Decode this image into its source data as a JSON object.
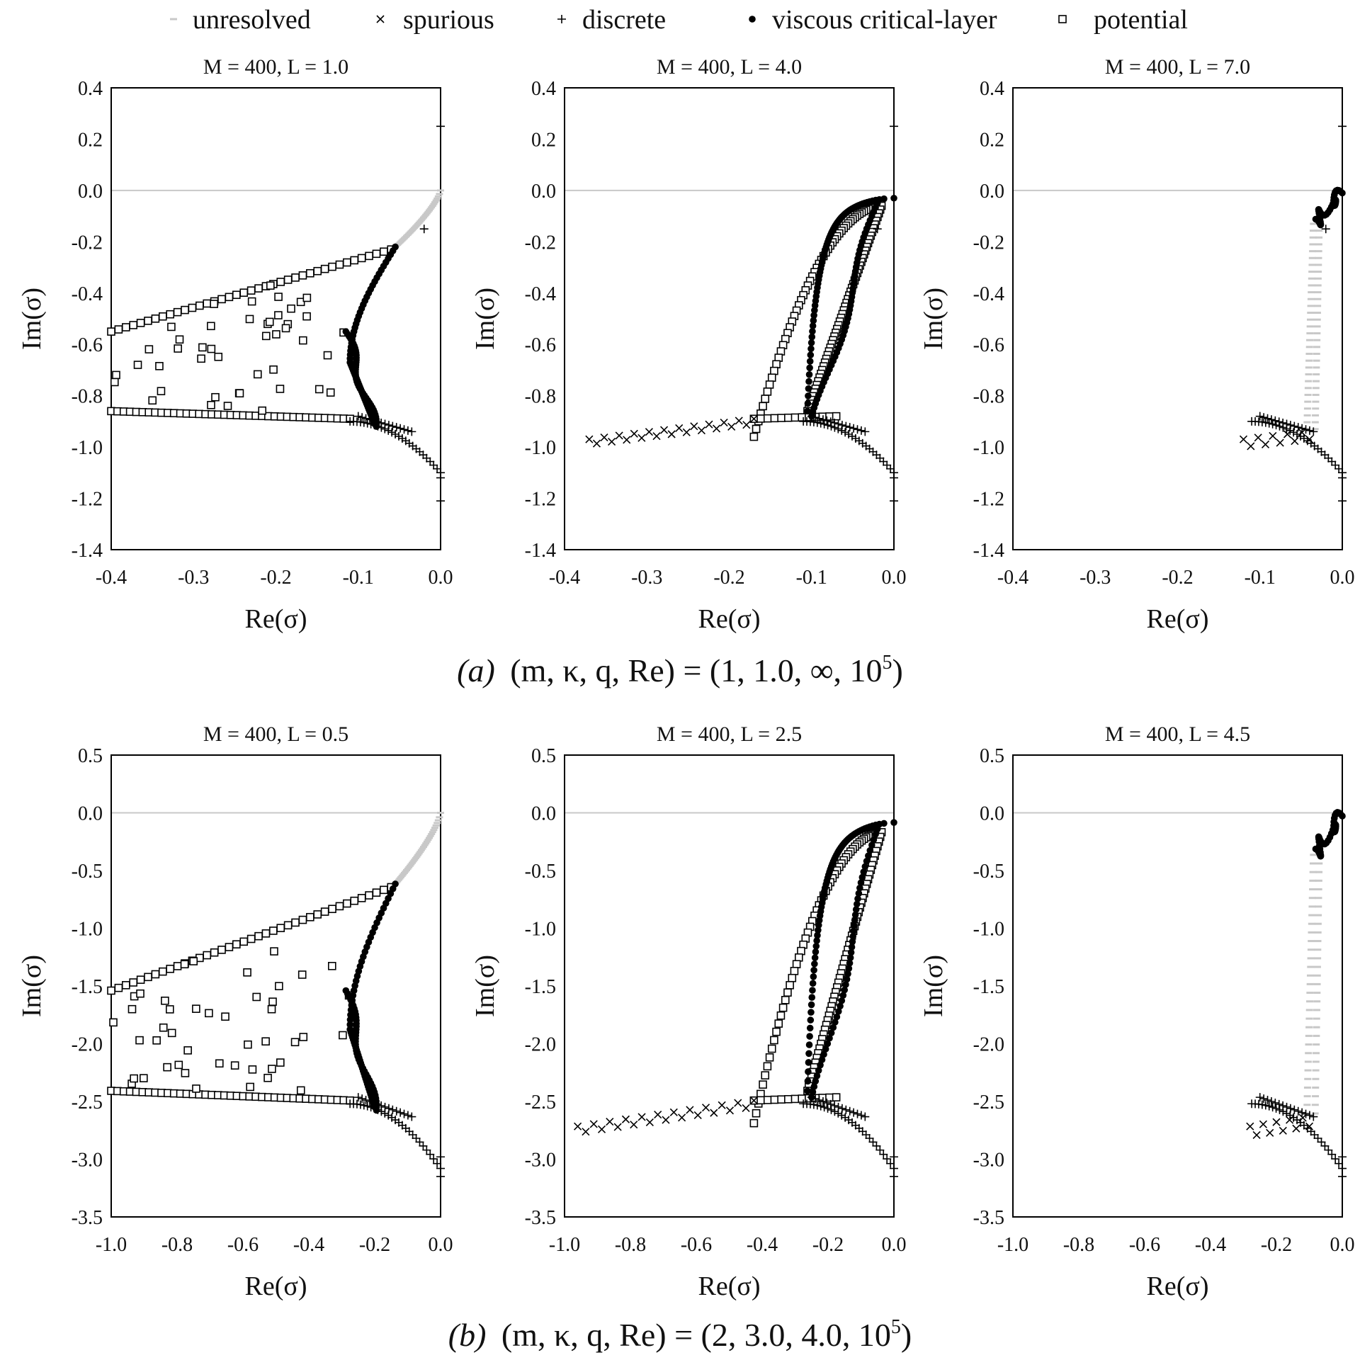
{
  "legend": [
    {
      "key": "unresolved",
      "label": "unresolved",
      "marker": "dash"
    },
    {
      "key": "spurious",
      "label": "spurious",
      "marker": "x"
    },
    {
      "key": "discrete",
      "label": "discrete",
      "marker": "plus"
    },
    {
      "key": "viscous",
      "label": "viscous critical-layer",
      "marker": "dot"
    },
    {
      "key": "potential",
      "label": "potential",
      "marker": "square"
    }
  ],
  "captions": {
    "a": {
      "prefix": "(a)",
      "params": "(m, κ, q, Re) = (1, 1.0, ∞, 10",
      "exp": "5",
      "close": ")"
    },
    "b": {
      "prefix": "(b)",
      "params": "(m, κ, q, Re) = (2, 3.0, 4.0, 10",
      "exp": "5",
      "close": ")"
    }
  },
  "colors": {
    "marker": "#000000",
    "unresolved": "#c8c8c8",
    "zeroline": "#c8c8c8"
  },
  "chart_data": [
    {
      "type": "scatter",
      "panel": "a1",
      "title": "M = 400, L = 1.0",
      "xlabel": "Re(σ)",
      "ylabel": "Im(σ)",
      "xlim": [
        -0.4,
        0.0
      ],
      "ylim": [
        -1.4,
        0.4
      ],
      "xticks": [
        "-0.4",
        "-0.3",
        "-0.2",
        "-0.1",
        "0.0"
      ],
      "xtick_values": [
        -0.4,
        -0.3,
        -0.2,
        -0.1,
        0.0
      ],
      "yticks": [
        "0.4",
        "0.2",
        "0.0",
        "-0.2",
        "-0.4",
        "-0.6",
        "-0.8",
        "-1.0",
        "-1.2",
        "-1.4"
      ],
      "ytick_values": [
        0.4,
        0.2,
        0.0,
        -0.2,
        -0.4,
        -0.6,
        -0.8,
        -1.0,
        -1.2,
        -1.4
      ],
      "variant": "resolved",
      "y_scale": 1.0,
      "x_left": -0.4,
      "discrete": [
        [
          0.0,
          0.25
        ],
        [
          -0.02,
          -0.15
        ],
        [
          0.0,
          -1.12
        ],
        [
          0.0,
          -1.21
        ]
      ]
    },
    {
      "type": "scatter",
      "panel": "a2",
      "title": "M = 400, L = 4.0",
      "xlabel": "Re(σ)",
      "ylabel": "Im(σ)",
      "xlim": [
        -0.4,
        0.0
      ],
      "ylim": [
        -1.4,
        0.4
      ],
      "xticks": [
        "-0.4",
        "-0.3",
        "-0.2",
        "-0.1",
        "0.0"
      ],
      "xtick_values": [
        -0.4,
        -0.3,
        -0.2,
        -0.1,
        0.0
      ],
      "yticks": [
        "0.4",
        "0.2",
        "0.0",
        "-0.2",
        "-0.4",
        "-0.6",
        "-0.8",
        "-1.0",
        "-1.2",
        "-1.4"
      ],
      "ytick_values": [
        0.4,
        0.2,
        0.0,
        -0.2,
        -0.4,
        -0.6,
        -0.8,
        -1.0,
        -1.2,
        -1.4
      ],
      "variant": "spurious",
      "y_scale": 1.0,
      "x_left": -0.37,
      "discrete": [
        [
          0.0,
          0.25
        ],
        [
          -0.02,
          -0.15
        ],
        [
          0.0,
          -1.12
        ],
        [
          0.0,
          -1.21
        ]
      ]
    },
    {
      "type": "scatter",
      "panel": "a3",
      "title": "M = 400, L = 7.0",
      "xlabel": "Re(σ)",
      "ylabel": "Im(σ)",
      "xlim": [
        -0.4,
        0.0
      ],
      "ylim": [
        -1.4,
        0.4
      ],
      "xticks": [
        "-0.4",
        "-0.3",
        "-0.2",
        "-0.1",
        "0.0"
      ],
      "xtick_values": [
        -0.4,
        -0.3,
        -0.2,
        -0.1,
        0.0
      ],
      "yticks": [
        "0.4",
        "0.2",
        "0.0",
        "-0.2",
        "-0.4",
        "-0.6",
        "-0.8",
        "-1.0",
        "-1.2",
        "-1.4"
      ],
      "ytick_values": [
        0.4,
        0.2,
        0.0,
        -0.2,
        -0.4,
        -0.6,
        -0.8,
        -1.0,
        -1.2,
        -1.4
      ],
      "variant": "collapsed",
      "y_scale": 1.0,
      "x_left": -0.12,
      "discrete": [
        [
          0.0,
          0.25
        ],
        [
          -0.02,
          -0.15
        ],
        [
          0.0,
          -1.12
        ],
        [
          0.0,
          -1.21
        ]
      ]
    },
    {
      "type": "scatter",
      "panel": "b1",
      "title": "M = 400, L = 0.5",
      "xlabel": "Re(σ)",
      "ylabel": "Im(σ)",
      "xlim": [
        -1.0,
        0.0
      ],
      "ylim": [
        -3.5,
        0.5
      ],
      "xticks": [
        "-1.0",
        "-0.8",
        "-0.6",
        "-0.4",
        "-0.2",
        "0.0"
      ],
      "xtick_values": [
        -1.0,
        -0.8,
        -0.6,
        -0.4,
        -0.2,
        0.0
      ],
      "yticks": [
        "0.5",
        "0.0",
        "-0.5",
        "-1.0",
        "-1.5",
        "-2.0",
        "-2.5",
        "-3.0",
        "-3.5"
      ],
      "ytick_values": [
        0.5,
        0.0,
        -0.5,
        -1.0,
        -1.5,
        -2.0,
        -2.5,
        -3.0,
        -3.5
      ],
      "variant": "resolved",
      "y_scale": 2.8,
      "x_left": -1.0,
      "discrete": [
        [
          0.0,
          -2.98
        ],
        [
          0.0,
          -3.15
        ]
      ]
    },
    {
      "type": "scatter",
      "panel": "b2",
      "title": "M = 400, L = 2.5",
      "xlabel": "Re(σ)",
      "ylabel": "Im(σ)",
      "xlim": [
        -1.0,
        0.0
      ],
      "ylim": [
        -3.5,
        0.5
      ],
      "xticks": [
        "-1.0",
        "-0.8",
        "-0.6",
        "-0.4",
        "-0.2",
        "0.0"
      ],
      "xtick_values": [
        -1.0,
        -0.8,
        -0.6,
        -0.4,
        -0.2,
        0.0
      ],
      "yticks": [
        "0.5",
        "0.0",
        "-0.5",
        "-1.0",
        "-1.5",
        "-2.0",
        "-2.5",
        "-3.0",
        "-3.5"
      ],
      "ytick_values": [
        0.5,
        0.0,
        -0.5,
        -1.0,
        -1.5,
        -2.0,
        -2.5,
        -3.0,
        -3.5
      ],
      "variant": "spurious",
      "y_scale": 2.8,
      "x_left": -0.96,
      "discrete": [
        [
          0.0,
          -2.98
        ],
        [
          0.0,
          -3.15
        ]
      ]
    },
    {
      "type": "scatter",
      "panel": "b3",
      "title": "M = 400, L = 4.5",
      "xlabel": "Re(σ)",
      "ylabel": "Im(σ)",
      "xlim": [
        -1.0,
        0.0
      ],
      "ylim": [
        -3.5,
        0.5
      ],
      "xticks": [
        "-1.0",
        "-0.8",
        "-0.6",
        "-0.4",
        "-0.2",
        "0.0"
      ],
      "xtick_values": [
        -1.0,
        -0.8,
        -0.6,
        -0.4,
        -0.2,
        0.0
      ],
      "yticks": [
        "0.5",
        "0.0",
        "-0.5",
        "-1.0",
        "-1.5",
        "-2.0",
        "-2.5",
        "-3.0",
        "-3.5"
      ],
      "ytick_values": [
        0.5,
        0.0,
        -0.5,
        -1.0,
        -1.5,
        -2.0,
        -2.5,
        -3.0,
        -3.5
      ],
      "variant": "collapsed",
      "y_scale": 2.8,
      "x_left": -0.28,
      "discrete": [
        [
          0.0,
          -2.98
        ],
        [
          0.0,
          -3.15
        ]
      ]
    }
  ]
}
